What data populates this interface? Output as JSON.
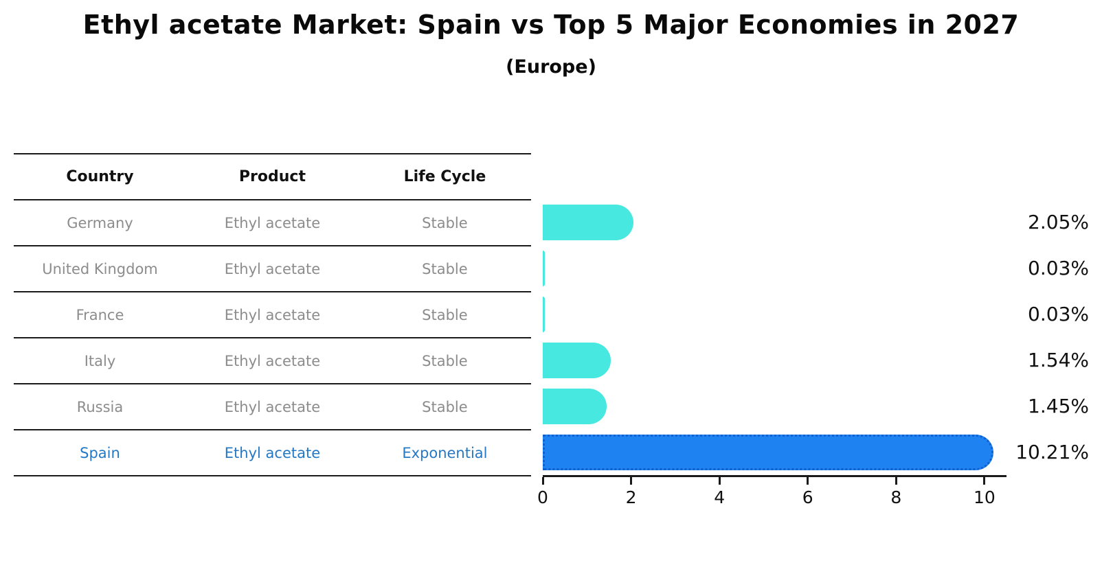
{
  "title": "Ethyl acetate Market: Spain vs Top 5 Major Economies in 2027",
  "subtitle": "(Europe)",
  "table": {
    "headers": [
      "Country",
      "Product",
      "Life Cycle"
    ],
    "rows": [
      {
        "country": "Germany",
        "product": "Ethyl acetate",
        "life_cycle": "Stable"
      },
      {
        "country": "United Kingdom",
        "product": "Ethyl acetate",
        "life_cycle": "Stable"
      },
      {
        "country": "France",
        "product": "Ethyl acetate",
        "life_cycle": "Stable"
      },
      {
        "country": "Italy",
        "product": "Ethyl acetate",
        "life_cycle": "Stable"
      },
      {
        "country": "Russia",
        "product": "Ethyl acetate",
        "life_cycle": "Stable"
      },
      {
        "country": "Spain",
        "product": "Ethyl acetate",
        "life_cycle": "Exponential",
        "highlighted": true
      }
    ]
  },
  "chart_data": {
    "type": "bar",
    "orientation": "horizontal",
    "title": "Ethyl acetate Market: Spain vs Top 5 Major Economies in 2027",
    "subtitle": "(Europe)",
    "categories": [
      "Germany",
      "United Kingdom",
      "France",
      "Italy",
      "Russia",
      "Spain"
    ],
    "values": [
      2.05,
      0.03,
      0.03,
      1.54,
      1.45,
      10.21
    ],
    "value_labels": [
      "2.05%",
      "0.03%",
      "0.03%",
      "1.54%",
      "1.45%",
      "10.21%"
    ],
    "xticks": [
      0,
      2,
      4,
      6,
      8,
      10
    ],
    "xlim": [
      0,
      10.5
    ],
    "highlight_index": 5,
    "grid": false,
    "legend": false
  },
  "colors": {
    "bar-default": "#47e8e0",
    "bar-highlight": "#1e82f0",
    "bar-highlight-border": "#0f5fd0",
    "highlight-text": "#2478c4",
    "table-text": "#8c8c8c",
    "header-text": "#111111",
    "value-text": "#111111",
    "line": "#1a1a1a"
  }
}
